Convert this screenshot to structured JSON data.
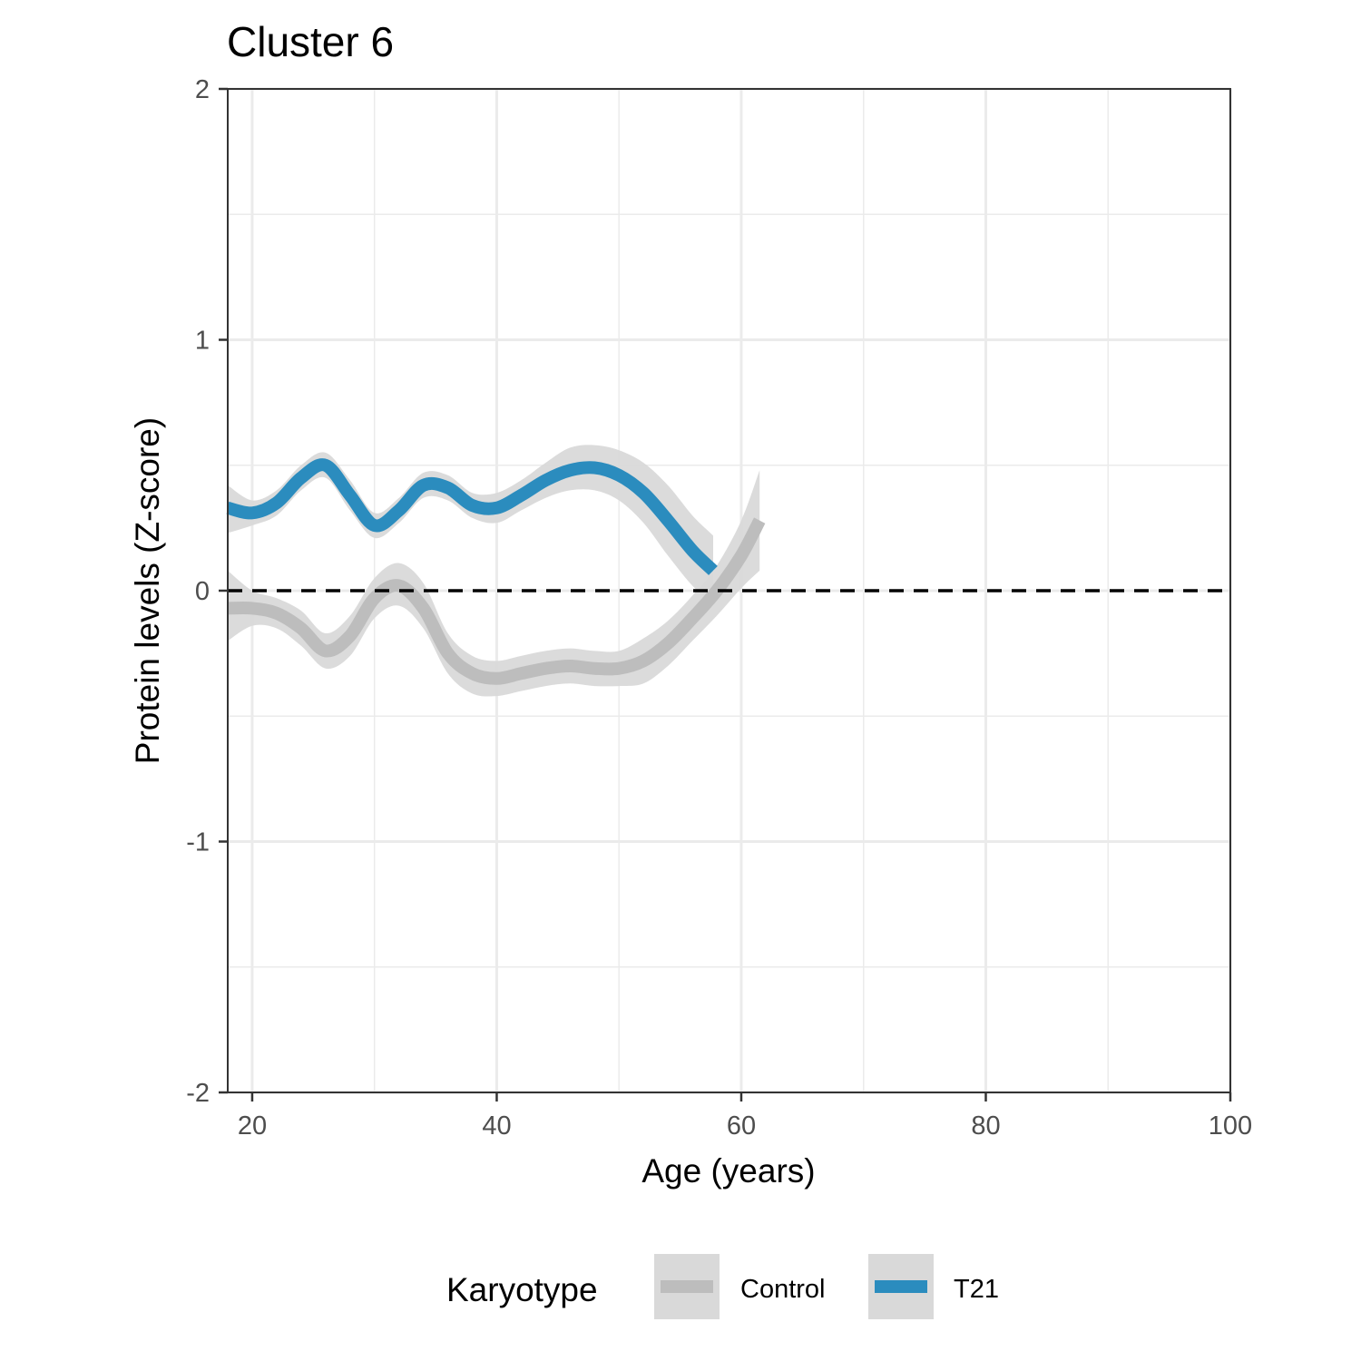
{
  "chart_data": {
    "type": "line",
    "title": "Cluster 6",
    "xlabel": "Age (years)",
    "ylabel": "Protein levels (Z-score)",
    "xlim": [
      18,
      100
    ],
    "ylim": [
      -2,
      2
    ],
    "x_ticks": [
      20,
      40,
      60,
      80,
      100
    ],
    "y_ticks": [
      -2,
      -1,
      0,
      1,
      2
    ],
    "x_tick_labels": [
      "20",
      "40",
      "60",
      "80",
      "100"
    ],
    "y_tick_labels": [
      "-2",
      "-1",
      "0",
      "1",
      "2"
    ],
    "grid": true,
    "reference_line": {
      "y": 0,
      "style": "dashed",
      "color": "#000000"
    },
    "legend": {
      "title": "Karyotype",
      "position": "bottom",
      "entries": [
        "Control",
        "T21"
      ]
    },
    "series": [
      {
        "name": "Control",
        "color": "#bdbdbd",
        "ribbon_color": "#d9d9d9",
        "x": [
          18,
          20,
          22,
          24,
          26,
          28,
          30,
          32,
          34,
          36,
          38,
          40,
          42,
          44,
          46,
          48,
          50,
          52,
          54,
          56,
          58,
          60,
          61.5
        ],
        "y": [
          -0.07,
          -0.07,
          -0.09,
          -0.15,
          -0.24,
          -0.18,
          -0.03,
          0.02,
          -0.07,
          -0.25,
          -0.33,
          -0.35,
          -0.33,
          -0.31,
          -0.3,
          -0.31,
          -0.31,
          -0.28,
          -0.21,
          -0.11,
          0.0,
          0.14,
          0.28
        ],
        "lower": [
          -0.2,
          -0.14,
          -0.15,
          -0.22,
          -0.31,
          -0.26,
          -0.11,
          -0.06,
          -0.15,
          -0.33,
          -0.41,
          -0.42,
          -0.4,
          -0.38,
          -0.37,
          -0.38,
          -0.38,
          -0.37,
          -0.3,
          -0.2,
          -0.1,
          0.01,
          0.08
        ],
        "upper": [
          0.08,
          0.0,
          -0.03,
          -0.08,
          -0.17,
          -0.1,
          0.05,
          0.11,
          0.03,
          -0.17,
          -0.26,
          -0.28,
          -0.26,
          -0.24,
          -0.23,
          -0.24,
          -0.24,
          -0.19,
          -0.12,
          -0.02,
          0.1,
          0.28,
          0.48
        ]
      },
      {
        "name": "T21",
        "color": "#2b8cbe",
        "ribbon_color": "#d9d9d9",
        "x": [
          18,
          20,
          22,
          24,
          26,
          28,
          30,
          32,
          34,
          36,
          38,
          40,
          42,
          44,
          46,
          48,
          50,
          52,
          54,
          56,
          57.7
        ],
        "y": [
          0.33,
          0.31,
          0.35,
          0.45,
          0.5,
          0.38,
          0.26,
          0.32,
          0.42,
          0.41,
          0.34,
          0.33,
          0.38,
          0.44,
          0.48,
          0.49,
          0.46,
          0.39,
          0.28,
          0.16,
          0.08
        ],
        "lower": [
          0.23,
          0.26,
          0.3,
          0.4,
          0.45,
          0.32,
          0.21,
          0.27,
          0.37,
          0.36,
          0.29,
          0.27,
          0.32,
          0.37,
          0.4,
          0.4,
          0.36,
          0.27,
          0.14,
          0.02,
          -0.05
        ],
        "upper": [
          0.42,
          0.36,
          0.4,
          0.5,
          0.55,
          0.44,
          0.31,
          0.37,
          0.47,
          0.46,
          0.39,
          0.39,
          0.44,
          0.51,
          0.57,
          0.58,
          0.56,
          0.51,
          0.42,
          0.3,
          0.22
        ]
      }
    ]
  }
}
